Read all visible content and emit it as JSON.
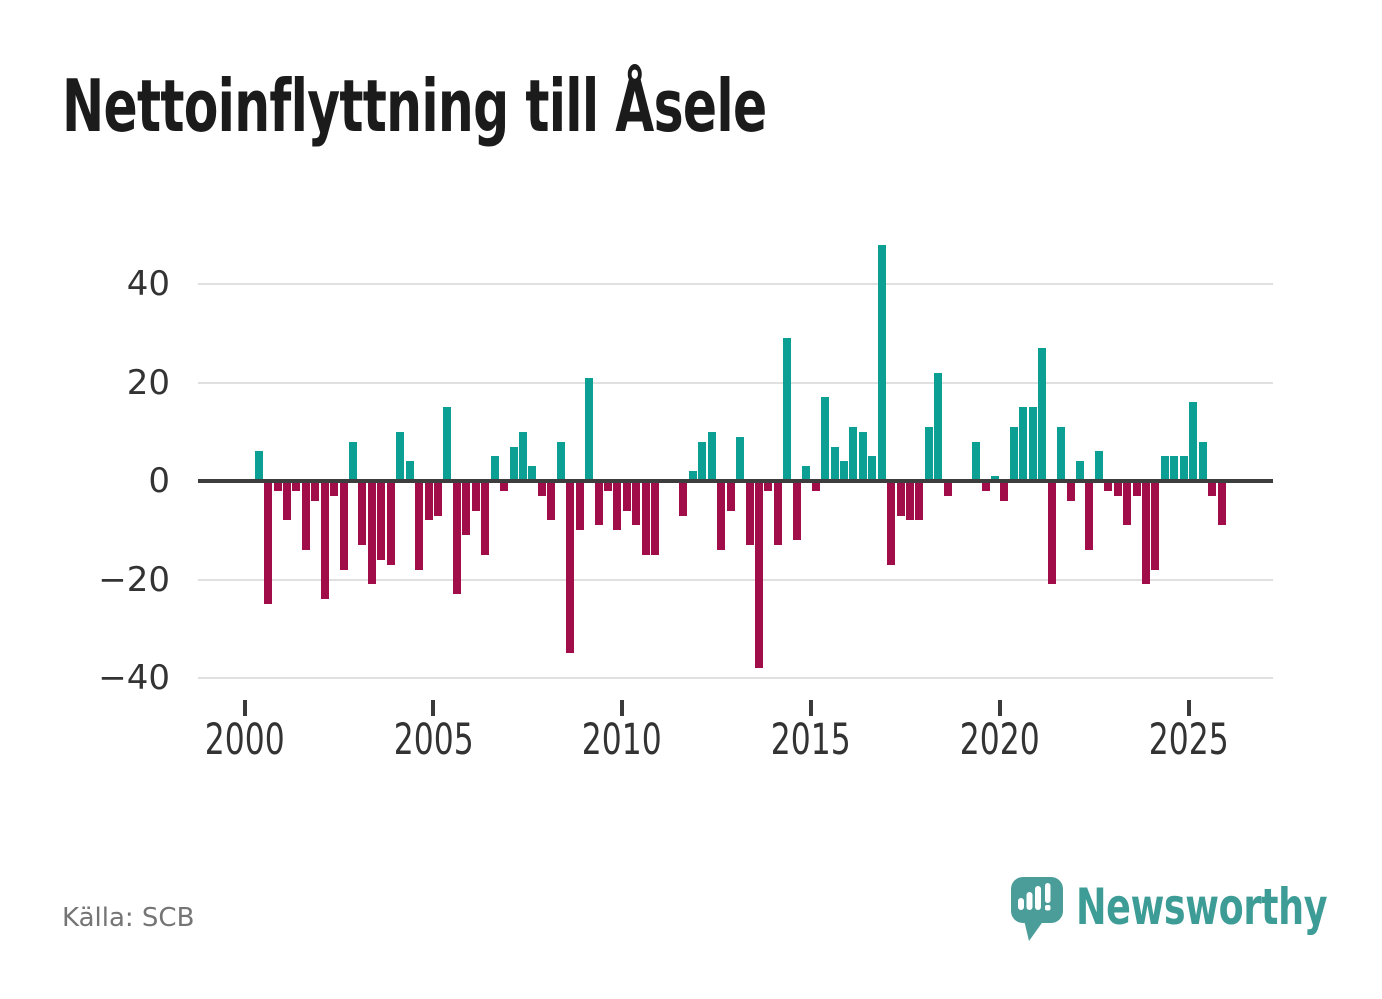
{
  "title": "Nettoinflyttning till Åsele",
  "source": "Källa: SCB",
  "branding": {
    "name": "Newsworthy",
    "icon": "speech-bubble-bar-chart-icon"
  },
  "colors": {
    "positive_bar": "#0ba093",
    "negative_bar": "#a00d49",
    "gridline": "#e0e0e0",
    "zero_line": "#3d3d3d",
    "title_text": "#1b1b1b",
    "axis_label": "#333333",
    "source_text": "#757575",
    "logo_teal": "#4a9d98",
    "background": "#ffffff"
  },
  "chart_data": {
    "type": "bar",
    "title": "Nettoinflyttning till Åsele",
    "grid": true,
    "legend_position": "none",
    "y_ticks": [
      40,
      20,
      0,
      -20,
      -40
    ],
    "x_ticks": [
      2000,
      2005,
      2010,
      2015,
      2020,
      2025
    ],
    "ylim": [
      -44,
      51
    ],
    "start_quarter": "2000 Q2",
    "end_quarter": "2025 Q4",
    "quarters": [
      "2000 Q2",
      "2000 Q3",
      "2000 Q4",
      "2001 Q1",
      "2001 Q2",
      "2001 Q3",
      "2001 Q4",
      "2002 Q1",
      "2002 Q2",
      "2002 Q3",
      "2002 Q4",
      "2003 Q1",
      "2003 Q2",
      "2003 Q3",
      "2003 Q4",
      "2004 Q1",
      "2004 Q2",
      "2004 Q3",
      "2004 Q4",
      "2005 Q1",
      "2005 Q2",
      "2005 Q3",
      "2005 Q4",
      "2006 Q1",
      "2006 Q2",
      "2006 Q3",
      "2006 Q4",
      "2007 Q1",
      "2007 Q2",
      "2007 Q3",
      "2007 Q4",
      "2008 Q1",
      "2008 Q2",
      "2008 Q3",
      "2008 Q4",
      "2009 Q1",
      "2009 Q2",
      "2009 Q3",
      "2009 Q4",
      "2010 Q1",
      "2010 Q2",
      "2010 Q3",
      "2010 Q4",
      "2011 Q1",
      "2011 Q2",
      "2011 Q3",
      "2011 Q4",
      "2012 Q1",
      "2012 Q2",
      "2012 Q3",
      "2012 Q4",
      "2013 Q1",
      "2013 Q2",
      "2013 Q3",
      "2013 Q4",
      "2014 Q1",
      "2014 Q2",
      "2014 Q3",
      "2014 Q4",
      "2015 Q1",
      "2015 Q2",
      "2015 Q3",
      "2015 Q4",
      "2016 Q1",
      "2016 Q2",
      "2016 Q3",
      "2016 Q4",
      "2017 Q1",
      "2017 Q2",
      "2017 Q3",
      "2017 Q4",
      "2018 Q1",
      "2018 Q2",
      "2018 Q3",
      "2018 Q4",
      "2019 Q1",
      "2019 Q2",
      "2019 Q3",
      "2019 Q4",
      "2020 Q1",
      "2020 Q2",
      "2020 Q3",
      "2020 Q4",
      "2021 Q1",
      "2021 Q2",
      "2021 Q3",
      "2021 Q4",
      "2022 Q1",
      "2022 Q2",
      "2022 Q3",
      "2022 Q4",
      "2023 Q1",
      "2023 Q2",
      "2023 Q3",
      "2023 Q4",
      "2024 Q1",
      "2024 Q2",
      "2024 Q3",
      "2024 Q4",
      "2025 Q1",
      "2025 Q2",
      "2025 Q3",
      "2025 Q4"
    ],
    "values": [
      6,
      -25,
      -2,
      -8,
      -2,
      -14,
      -4,
      -24,
      -3,
      -18,
      8,
      -13,
      -21,
      -16,
      -17,
      10,
      4,
      -18,
      -8,
      -7,
      15,
      -23,
      -11,
      -6,
      -15,
      5,
      -2,
      7,
      10,
      3,
      -3,
      -8,
      8,
      -35,
      -10,
      21,
      -9,
      -2,
      -10,
      -6,
      -9,
      -15,
      -15,
      0,
      0,
      -7,
      2,
      8,
      10,
      -14,
      -6,
      9,
      -13,
      -38,
      -2,
      -13,
      29,
      -12,
      3,
      -2,
      17,
      7,
      4,
      11,
      10,
      5,
      48,
      -17,
      -7,
      -8,
      -8,
      11,
      22,
      -3,
      0,
      0,
      8,
      -2,
      1,
      -4,
      11,
      15,
      15,
      27,
      -21,
      11,
      -4,
      4,
      -14,
      6,
      -2,
      -3,
      -9,
      -3,
      -21,
      -18,
      5,
      5,
      5,
      16,
      8,
      -3,
      -9
    ]
  }
}
